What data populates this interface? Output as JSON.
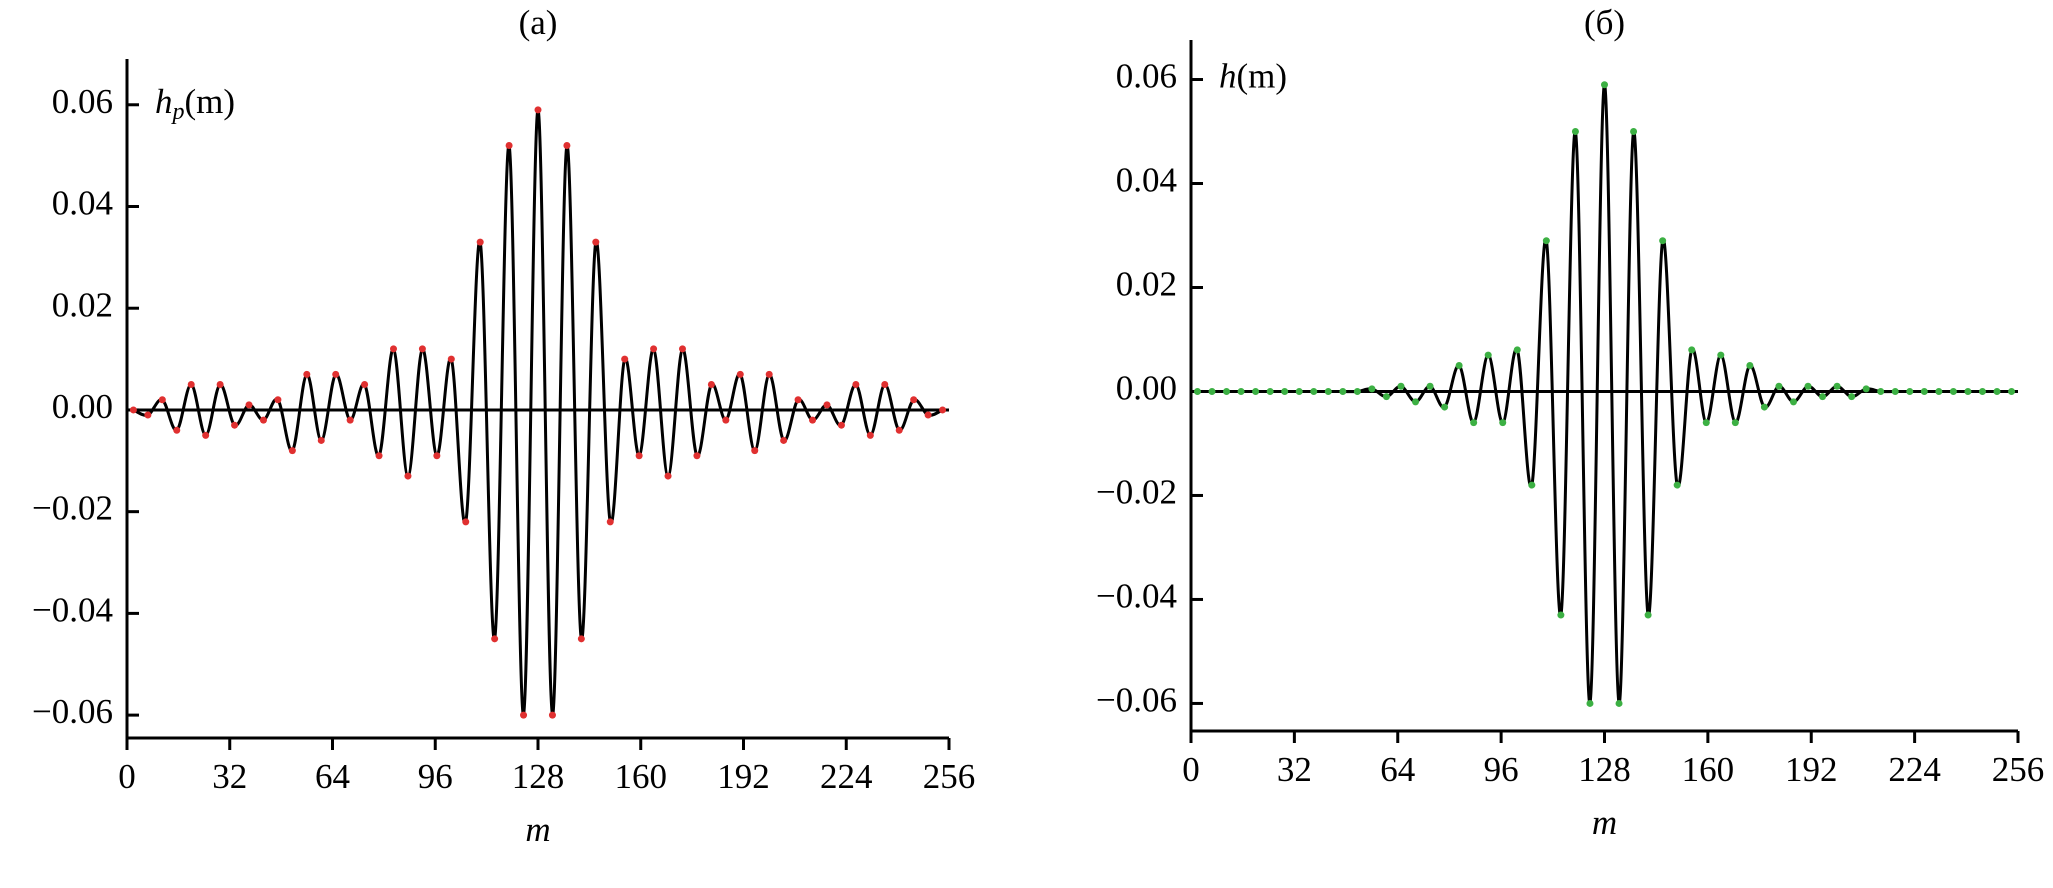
{
  "chart_data": [
    {
      "type": "line",
      "title": "(a)",
      "ylabel": "h",
      "ylabel_sub": "p",
      "ylabel_rest": "(m)",
      "xlabel": "m",
      "x": [
        2,
        6.5,
        11,
        15.5,
        20,
        24.5,
        29,
        33.5,
        38,
        42.5,
        47,
        51.5,
        56,
        60.5,
        65,
        69.5,
        74,
        78.5,
        83,
        87.5,
        92,
        96.5,
        101,
        105.5,
        110,
        114.5,
        119,
        123.5,
        128,
        132.5,
        137,
        141.5,
        146,
        150.5,
        155,
        159.5,
        164,
        168.5,
        173,
        177.5,
        182,
        186.5,
        191,
        195.5,
        200,
        204.5,
        209,
        213.5,
        218,
        222.5,
        227,
        231.5,
        236,
        240.5,
        245,
        249.5,
        254
      ],
      "series": [
        {
          "color": "#000000",
          "marker_color": "#e03030",
          "values": [
            0,
            -0.001,
            0.002,
            -0.004,
            0.005,
            -0.005,
            0.005,
            -0.003,
            0.001,
            -0.002,
            0.002,
            -0.008,
            0.007,
            -0.006,
            0.007,
            -0.002,
            0.005,
            -0.009,
            0.012,
            -0.013,
            0.012,
            -0.009,
            0.01,
            -0.022,
            0.033,
            -0.045,
            0.052,
            -0.06,
            0.059,
            -0.06,
            0.052,
            -0.045,
            0.033,
            -0.022,
            0.01,
            -0.009,
            0.012,
            -0.013,
            0.012,
            -0.009,
            0.005,
            -0.002,
            0.007,
            -0.008,
            0.007,
            -0.006,
            0.002,
            -0.002,
            0.001,
            -0.003,
            0.005,
            -0.005,
            0.005,
            -0.004,
            0.002,
            -0.001,
            0
          ]
        }
      ],
      "xlim": [
        0,
        256
      ],
      "xticks": [
        0,
        32,
        64,
        96,
        128,
        160,
        192,
        224,
        256
      ],
      "ylim": [
        -0.0645,
        0.069
      ],
      "yticks": [
        {
          "value": -0.06,
          "label": "−0.06"
        },
        {
          "value": -0.04,
          "label": "−0.04"
        },
        {
          "value": -0.02,
          "label": "−0.02"
        },
        {
          "value": 0,
          "label": "0.00"
        },
        {
          "value": 0.02,
          "label": "0.02"
        },
        {
          "value": 0.04,
          "label": "0.04"
        },
        {
          "value": 0.06,
          "label": "0.06"
        }
      ]
    },
    {
      "type": "line",
      "title": "(б)",
      "ylabel": "h",
      "ylabel_rest": "(m)",
      "xlabel": "m",
      "x": [
        2,
        6.5,
        11,
        15.5,
        20,
        24.5,
        29,
        33.5,
        38,
        42.5,
        47,
        51.5,
        56,
        60.5,
        65,
        69.5,
        74,
        78.5,
        83,
        87.5,
        92,
        96.5,
        101,
        105.5,
        110,
        114.5,
        119,
        123.5,
        128,
        132.5,
        137,
        141.5,
        146,
        150.5,
        155,
        159.5,
        164,
        168.5,
        173,
        177.5,
        182,
        186.5,
        191,
        195.5,
        200,
        204.5,
        209,
        213.5,
        218,
        222.5,
        227,
        231.5,
        236,
        240.5,
        245,
        249.5,
        254
      ],
      "series": [
        {
          "color": "#000000",
          "marker_color": "#3cb043",
          "values": [
            0,
            0,
            0,
            0,
            0,
            0,
            0,
            0,
            0,
            0,
            0,
            0,
            0.0005,
            -0.001,
            0.001,
            -0.002,
            0.001,
            -0.003,
            0.005,
            -0.006,
            0.007,
            -0.006,
            0.008,
            -0.018,
            0.029,
            -0.043,
            0.05,
            -0.06,
            0.059,
            -0.06,
            0.05,
            -0.043,
            0.029,
            -0.018,
            0.008,
            -0.006,
            0.007,
            -0.006,
            0.005,
            -0.003,
            0.001,
            -0.002,
            0.001,
            -0.001,
            0.001,
            -0.001,
            0.0005,
            0,
            0,
            0,
            0,
            0,
            0,
            0,
            0,
            0,
            0
          ]
        }
      ],
      "xlim": [
        0,
        256
      ],
      "xticks": [
        0,
        32,
        64,
        96,
        128,
        160,
        192,
        224,
        256
      ],
      "ylim": [
        -0.0653,
        0.0676
      ],
      "yticks": [
        {
          "value": -0.06,
          "label": "−0.06"
        },
        {
          "value": -0.04,
          "label": "−0.04"
        },
        {
          "value": -0.02,
          "label": "−0.02"
        },
        {
          "value": 0,
          "label": "0.00"
        },
        {
          "value": 0.02,
          "label": "0.02"
        },
        {
          "value": 0.04,
          "label": "0.04"
        },
        {
          "value": 0.06,
          "label": "0.06"
        }
      ]
    }
  ]
}
